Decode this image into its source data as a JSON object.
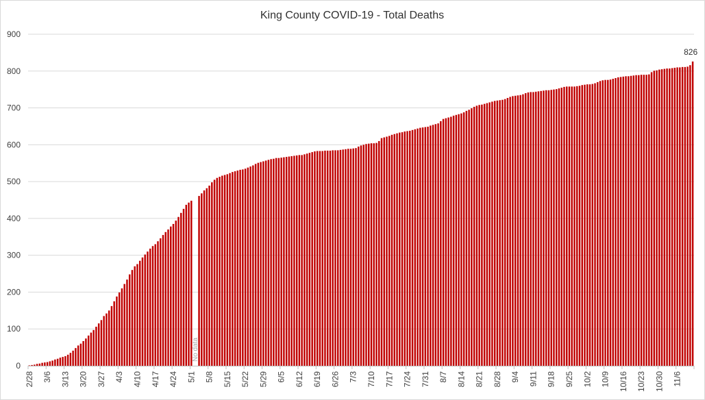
{
  "chart_data": {
    "type": "bar",
    "title": "King County COVID-19 - Total Deaths",
    "xlabel": "",
    "ylabel": "",
    "ylim": [
      0,
      900
    ],
    "yticks": [
      0,
      100,
      200,
      300,
      400,
      500,
      600,
      700,
      800,
      900
    ],
    "grid": true,
    "bar_color": "#C00000",
    "x_tick_labels": [
      "2/28",
      "3/6",
      "3/13",
      "3/20",
      "3/27",
      "4/3",
      "4/10",
      "4/17",
      "4/24",
      "5/1",
      "5/8",
      "5/15",
      "5/22",
      "5/29",
      "6/5",
      "6/12",
      "6/19",
      "6/26",
      "7/3",
      "7/10",
      "7/17",
      "7/24",
      "7/31",
      "8/7",
      "8/14",
      "8/21",
      "8/28",
      "9/4",
      "9/11",
      "9/18",
      "9/25",
      "10/2",
      "10/9",
      "10/16",
      "10/23",
      "10/30",
      "11/6"
    ],
    "categories": [
      "2/28",
      "2/29",
      "3/1",
      "3/2",
      "3/3",
      "3/4",
      "3/5",
      "3/6",
      "3/7",
      "3/8",
      "3/9",
      "3/10",
      "3/11",
      "3/12",
      "3/13",
      "3/14",
      "3/15",
      "3/16",
      "3/17",
      "3/18",
      "3/19",
      "3/20",
      "3/21",
      "3/22",
      "3/23",
      "3/24",
      "3/25",
      "3/26",
      "3/27",
      "3/28",
      "3/29",
      "3/30",
      "3/31",
      "4/1",
      "4/2",
      "4/3",
      "4/4",
      "4/5",
      "4/6",
      "4/7",
      "4/8",
      "4/9",
      "4/10",
      "4/11",
      "4/12",
      "4/13",
      "4/14",
      "4/15",
      "4/16",
      "4/17",
      "4/18",
      "4/19",
      "4/20",
      "4/21",
      "4/22",
      "4/23",
      "4/24",
      "4/25",
      "4/26",
      "4/27",
      "4/28",
      "4/29",
      "4/30",
      "5/1",
      "5/2",
      "5/3",
      "5/4",
      "5/5",
      "5/6",
      "5/7",
      "5/8",
      "5/9",
      "5/10",
      "5/11",
      "5/12",
      "5/13",
      "5/14",
      "5/15",
      "5/16",
      "5/17",
      "5/18",
      "5/19",
      "5/20",
      "5/21",
      "5/22",
      "5/23",
      "5/24",
      "5/25",
      "5/26",
      "5/27",
      "5/28",
      "5/29",
      "5/30",
      "5/31",
      "6/1",
      "6/2",
      "6/3",
      "6/4",
      "6/5",
      "6/6",
      "6/7",
      "6/8",
      "6/9",
      "6/10",
      "6/11",
      "6/12",
      "6/13",
      "6/14",
      "6/15",
      "6/16",
      "6/17",
      "6/18",
      "6/19",
      "6/20",
      "6/21",
      "6/22",
      "6/23",
      "6/24",
      "6/25",
      "6/26",
      "6/27",
      "6/28",
      "6/29",
      "6/30",
      "7/1",
      "7/2",
      "7/3",
      "7/4",
      "7/5",
      "7/6",
      "7/7",
      "7/8",
      "7/9",
      "7/10",
      "7/11",
      "7/12",
      "7/13",
      "7/14",
      "7/15",
      "7/16",
      "7/17",
      "7/18",
      "7/19",
      "7/20",
      "7/21",
      "7/22",
      "7/23",
      "7/24",
      "7/25",
      "7/26",
      "7/27",
      "7/28",
      "7/29",
      "7/30",
      "7/31",
      "8/1",
      "8/2",
      "8/3",
      "8/4",
      "8/5",
      "8/6",
      "8/7",
      "8/8",
      "8/9",
      "8/10",
      "8/11",
      "8/12",
      "8/13",
      "8/14",
      "8/15",
      "8/16",
      "8/17",
      "8/18",
      "8/19",
      "8/20",
      "8/21",
      "8/22",
      "8/23",
      "8/24",
      "8/25",
      "8/26",
      "8/27",
      "8/28",
      "8/29",
      "8/30",
      "8/31",
      "9/1",
      "9/2",
      "9/3",
      "9/4",
      "9/5",
      "9/6",
      "9/7",
      "9/8",
      "9/9",
      "9/10",
      "9/11",
      "9/12",
      "9/13",
      "9/14",
      "9/15",
      "9/16",
      "9/17",
      "9/18",
      "9/19",
      "9/20",
      "9/21",
      "9/22",
      "9/23",
      "9/24",
      "9/25",
      "9/26",
      "9/27",
      "9/28",
      "9/29",
      "9/30",
      "10/1",
      "10/2",
      "10/3",
      "10/4",
      "10/5",
      "10/6",
      "10/7",
      "10/8",
      "10/9",
      "10/10",
      "10/11",
      "10/12",
      "10/13",
      "10/14",
      "10/15",
      "10/16",
      "10/17",
      "10/18",
      "10/19",
      "10/20",
      "10/21",
      "10/22",
      "10/23",
      "10/24",
      "10/25",
      "10/26",
      "10/27",
      "10/28",
      "10/29",
      "10/30",
      "10/31",
      "11/1",
      "11/2",
      "11/3",
      "11/4",
      "11/5",
      "11/6",
      "11/7",
      "11/8",
      "11/9",
      "11/10",
      "11/11",
      "11/12"
    ],
    "values": [
      1,
      2,
      3,
      5,
      6,
      8,
      9,
      10,
      12,
      14,
      17,
      19,
      22,
      24,
      26,
      30,
      35,
      41,
      48,
      55,
      60,
      67,
      74,
      82,
      90,
      97,
      106,
      115,
      124,
      135,
      142,
      150,
      162,
      175,
      188,
      199,
      210,
      222,
      234,
      248,
      260,
      270,
      276,
      285,
      294,
      302,
      310,
      318,
      325,
      330,
      338,
      346,
      355,
      363,
      370,
      378,
      385,
      394,
      404,
      415,
      426,
      437,
      443,
      448,
      null,
      null,
      461,
      468,
      476,
      482,
      489,
      498,
      505,
      510,
      513,
      516,
      518,
      520,
      523,
      526,
      528,
      530,
      532,
      533,
      535,
      538,
      541,
      544,
      548,
      551,
      553,
      555,
      557,
      559,
      561,
      562,
      564,
      564,
      565,
      566,
      567,
      568,
      569,
      570,
      571,
      572,
      572,
      574,
      576,
      578,
      580,
      582,
      583,
      583,
      583,
      584,
      584,
      584,
      585,
      585,
      585,
      586,
      587,
      588,
      589,
      589,
      590,
      591,
      595,
      598,
      600,
      602,
      603,
      604,
      604,
      605,
      610,
      618,
      620,
      622,
      624,
      627,
      629,
      631,
      633,
      634,
      636,
      637,
      638,
      640,
      642,
      644,
      646,
      647,
      648,
      649,
      652,
      654,
      656,
      658,
      664,
      670,
      672,
      674,
      676,
      679,
      681,
      683,
      685,
      688,
      692,
      695,
      699,
      703,
      706,
      708,
      709,
      711,
      713,
      715,
      717,
      719,
      720,
      721,
      722,
      724,
      727,
      730,
      732,
      733,
      734,
      735,
      737,
      740,
      742,
      743,
      743,
      744,
      745,
      746,
      747,
      748,
      748,
      749,
      750,
      751,
      753,
      755,
      757,
      758,
      758,
      758,
      758,
      759,
      760,
      762,
      763,
      764,
      764,
      765,
      767,
      770,
      773,
      775,
      776,
      776,
      777,
      779,
      781,
      783,
      784,
      785,
      786,
      786,
      787,
      788,
      789,
      789,
      790,
      790,
      790,
      791,
      797,
      801,
      802,
      804,
      805,
      806,
      807,
      807,
      808,
      809,
      810,
      810,
      811,
      811,
      812,
      816,
      826
    ],
    "annotations": [
      {
        "text": "No data",
        "category": "5/2"
      },
      {
        "text": "826",
        "category": "11/12"
      }
    ]
  }
}
